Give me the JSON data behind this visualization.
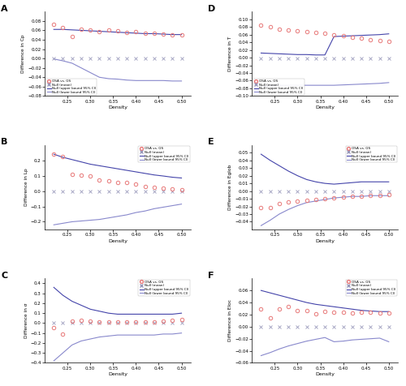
{
  "density": [
    0.22,
    0.24,
    0.26,
    0.28,
    0.3,
    0.32,
    0.34,
    0.36,
    0.38,
    0.4,
    0.42,
    0.44,
    0.46,
    0.48,
    0.5
  ],
  "A_osa": [
    0.073,
    0.066,
    0.047,
    0.063,
    0.06,
    0.058,
    0.06,
    0.059,
    0.055,
    0.057,
    0.054,
    0.053,
    0.052,
    0.05,
    0.05
  ],
  "A_null_mean": [
    0.0,
    0.0,
    0.0,
    0.0,
    0.0,
    0.0,
    0.0,
    0.0,
    0.0,
    0.0,
    0.0,
    0.0,
    0.0,
    0.0,
    0.0
  ],
  "A_upper": [
    0.062,
    0.062,
    0.061,
    0.06,
    0.059,
    0.058,
    0.057,
    0.056,
    0.055,
    0.054,
    0.053,
    0.053,
    0.052,
    0.051,
    0.051
  ],
  "A_lower": [
    -0.001,
    -0.005,
    -0.01,
    -0.02,
    -0.03,
    -0.04,
    -0.043,
    -0.044,
    -0.046,
    -0.047,
    -0.047,
    -0.047,
    -0.047,
    -0.048,
    -0.048
  ],
  "A_ylabel": "Difference in Cp",
  "A_ylim": [
    -0.08,
    0.1
  ],
  "A_yticks": [
    -0.08,
    -0.06,
    -0.04,
    -0.02,
    0.0,
    0.02,
    0.04,
    0.06,
    0.08
  ],
  "A_legend_loc": "lower left",
  "B_osa": [
    0.24,
    0.225,
    0.11,
    0.105,
    0.1,
    0.07,
    0.065,
    0.055,
    0.055,
    0.045,
    0.03,
    0.025,
    0.02,
    0.015,
    0.01
  ],
  "B_null_mean": [
    0.0,
    0.0,
    0.0,
    0.0,
    0.0,
    0.0,
    0.0,
    0.0,
    0.0,
    0.0,
    0.0,
    0.0,
    0.0,
    0.0,
    0.0
  ],
  "B_upper": [
    0.24,
    0.22,
    0.205,
    0.19,
    0.175,
    0.165,
    0.155,
    0.145,
    0.135,
    0.125,
    0.115,
    0.105,
    0.098,
    0.09,
    0.085
  ],
  "B_lower": [
    -0.22,
    -0.21,
    -0.2,
    -0.195,
    -0.19,
    -0.185,
    -0.175,
    -0.165,
    -0.155,
    -0.14,
    -0.13,
    -0.115,
    -0.105,
    -0.095,
    -0.085
  ],
  "B_ylabel": "Difference in Lp",
  "B_ylim": [
    -0.25,
    0.3
  ],
  "B_yticks": [
    -0.2,
    -0.1,
    0.0,
    0.1,
    0.2
  ],
  "B_legend_loc": "upper right",
  "C_osa": [
    -0.045,
    -0.11,
    0.02,
    0.025,
    0.02,
    0.015,
    0.015,
    0.01,
    0.015,
    0.01,
    0.01,
    0.01,
    0.02,
    0.025,
    0.04
  ],
  "C_null_mean": [
    0.0,
    0.0,
    0.0,
    0.0,
    0.0,
    0.0,
    0.0,
    0.0,
    0.0,
    0.0,
    0.0,
    0.0,
    0.0,
    0.0,
    0.0
  ],
  "C_upper": [
    0.36,
    0.28,
    0.22,
    0.18,
    0.14,
    0.12,
    0.1,
    0.09,
    0.09,
    0.09,
    0.09,
    0.09,
    0.09,
    0.09,
    0.1
  ],
  "C_lower": [
    -0.38,
    -0.3,
    -0.22,
    -0.18,
    -0.16,
    -0.14,
    -0.13,
    -0.12,
    -0.12,
    -0.12,
    -0.12,
    -0.12,
    -0.11,
    -0.11,
    -0.1
  ],
  "C_ylabel": "Difference in σ",
  "C_ylim": [
    -0.4,
    0.45
  ],
  "C_yticks": [
    -0.4,
    -0.3,
    -0.2,
    -0.1,
    0.0,
    0.1,
    0.2,
    0.3,
    0.4
  ],
  "C_legend_loc": "upper right",
  "D_osa": [
    0.084,
    0.08,
    0.075,
    0.072,
    0.07,
    0.068,
    0.065,
    0.063,
    0.06,
    0.058,
    0.052,
    0.05,
    0.047,
    0.045,
    0.042
  ],
  "D_null_mean": [
    -0.003,
    -0.003,
    -0.003,
    -0.003,
    -0.003,
    -0.003,
    -0.003,
    -0.003,
    -0.003,
    -0.003,
    -0.003,
    -0.003,
    -0.003,
    -0.003,
    -0.003
  ],
  "D_upper": [
    0.012,
    0.011,
    0.01,
    0.009,
    0.008,
    0.008,
    0.007,
    0.007,
    0.055,
    0.056,
    0.057,
    0.058,
    0.059,
    0.06,
    0.062
  ],
  "D_lower": [
    -0.075,
    -0.073,
    -0.072,
    -0.072,
    -0.072,
    -0.072,
    -0.072,
    -0.072,
    -0.072,
    -0.071,
    -0.07,
    -0.069,
    -0.068,
    -0.067,
    -0.065
  ],
  "D_ylabel": "Difference in T",
  "D_ylim": [
    -0.1,
    0.12
  ],
  "D_yticks": [
    -0.1,
    -0.08,
    -0.06,
    -0.04,
    -0.02,
    0.0,
    0.02,
    0.04,
    0.06,
    0.08,
    0.1
  ],
  "D_legend_loc": "lower left",
  "E_osa": [
    -0.022,
    -0.022,
    -0.016,
    -0.014,
    -0.013,
    -0.012,
    -0.011,
    -0.01,
    -0.009,
    -0.008,
    -0.007,
    -0.007,
    -0.006,
    -0.006,
    -0.005
  ],
  "E_null_mean": [
    0.0,
    0.0,
    0.0,
    0.0,
    0.0,
    0.0,
    0.0,
    0.0,
    0.0,
    0.0,
    0.0,
    0.0,
    0.0,
    0.0,
    0.0
  ],
  "E_upper": [
    0.048,
    0.04,
    0.033,
    0.026,
    0.02,
    0.015,
    0.012,
    0.01,
    0.009,
    0.01,
    0.011,
    0.012,
    0.012,
    0.012,
    0.012
  ],
  "E_lower": [
    -0.045,
    -0.038,
    -0.03,
    -0.024,
    -0.019,
    -0.015,
    -0.013,
    -0.011,
    -0.009,
    -0.008,
    -0.007,
    -0.007,
    -0.006,
    -0.006,
    -0.006
  ],
  "E_ylabel": "Difference in Eglob",
  "E_ylim": [
    -0.05,
    0.06
  ],
  "E_yticks": [
    -0.04,
    -0.03,
    -0.02,
    -0.01,
    0.0,
    0.01,
    0.02,
    0.03,
    0.04,
    0.05
  ],
  "E_legend_loc": "upper right",
  "F_osa": [
    0.03,
    0.014,
    0.03,
    0.033,
    0.026,
    0.026,
    0.021,
    0.025,
    0.024,
    0.024,
    0.023,
    0.024,
    0.024,
    0.023,
    0.023
  ],
  "F_null_mean": [
    0.0,
    0.0,
    0.0,
    0.0,
    0.0,
    0.0,
    0.0,
    0.0,
    0.0,
    0.0,
    0.0,
    0.0,
    0.0,
    0.0,
    0.0
  ],
  "F_upper": [
    0.06,
    0.056,
    0.052,
    0.048,
    0.044,
    0.04,
    0.037,
    0.035,
    0.033,
    0.031,
    0.029,
    0.027,
    0.026,
    0.025,
    0.025
  ],
  "F_lower": [
    -0.048,
    -0.043,
    -0.037,
    -0.032,
    -0.028,
    -0.024,
    -0.021,
    -0.018,
    -0.025,
    -0.024,
    -0.022,
    -0.021,
    -0.02,
    -0.019,
    -0.025
  ],
  "F_ylabel": "Difference in Eloc",
  "F_ylim": [
    -0.06,
    0.08
  ],
  "F_yticks": [
    -0.06,
    -0.04,
    -0.02,
    0.0,
    0.02,
    0.04,
    0.06
  ],
  "F_legend_loc": "upper right",
  "color_osa": "#e87878",
  "color_null": "#9999bb",
  "color_upper": "#4444aa",
  "color_lower": "#8888cc",
  "xlabel": "Density",
  "legend_labels": [
    "OSA vs. GS",
    "Null (mean)",
    "Null (upper bound 95% CI)",
    "Null (lower bound 95% CI)"
  ]
}
